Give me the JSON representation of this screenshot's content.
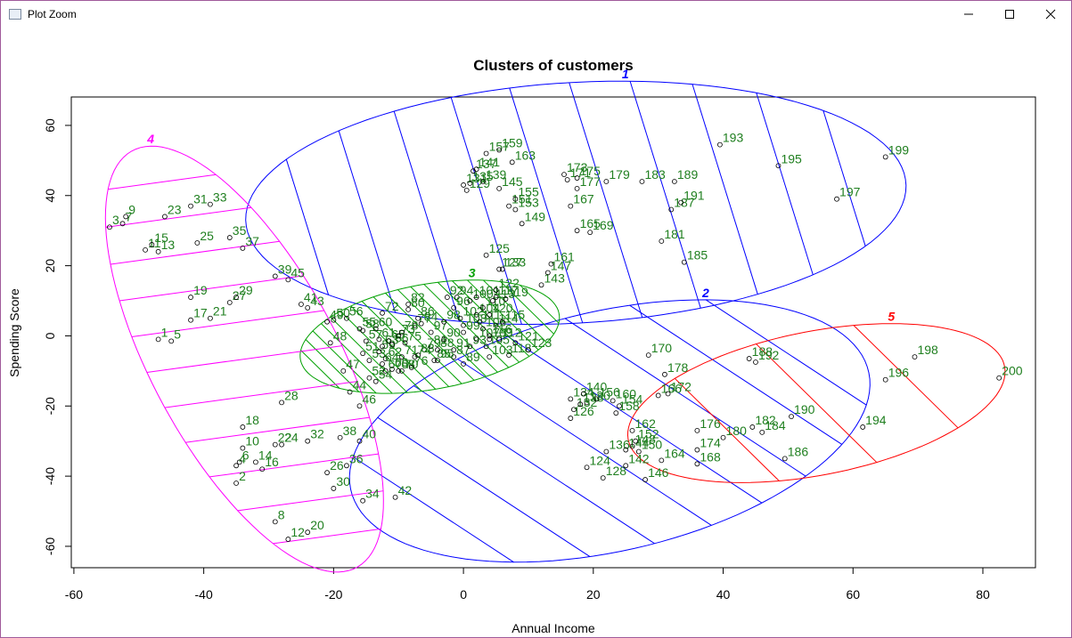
{
  "window": {
    "title": "Plot Zoom"
  },
  "chart_data": {
    "type": "clusplot",
    "title": "Clusters of customers",
    "xlabel": "Annual Income",
    "ylabel": "Spending Score",
    "xlim": [
      -60.4,
      88.1
    ],
    "ylim": [
      -66.1,
      68.1
    ],
    "xticks": [
      -60,
      -40,
      -20,
      0,
      20,
      40,
      60,
      80
    ],
    "yticks": [
      -60,
      -40,
      -20,
      0,
      20,
      40,
      60
    ],
    "label_color": "#1f7f1f",
    "series": [
      {
        "name": "1",
        "color": "#0000ff",
        "labels": [
          "125",
          "127",
          "129",
          "131",
          "133",
          "135",
          "137",
          "139",
          "141",
          "143",
          "145",
          "147",
          "149",
          "151",
          "153",
          "155",
          "157",
          "159",
          "161",
          "163",
          "165",
          "167",
          "169",
          "171",
          "173",
          "175",
          "177",
          "179",
          "181",
          "183",
          "185",
          "187",
          "189",
          "191",
          "193",
          "195",
          "197",
          "199"
        ],
        "x": [
          3.5,
          5.5,
          0.5,
          0,
          6,
          1,
          1.5,
          3,
          2,
          12,
          5.5,
          13,
          9,
          7,
          8,
          8,
          3.5,
          5.5,
          13.5,
          7.5,
          17.5,
          16.5,
          19.5,
          16,
          15.5,
          17.5,
          17.5,
          22,
          30.5,
          27.5,
          34,
          32,
          32.5,
          33.5,
          39.5,
          48.5,
          57.5,
          65
        ],
        "values": [
          23,
          19,
          41.5,
          43,
          19,
          43.5,
          47,
          44,
          47.5,
          14.5,
          42,
          18,
          32,
          37,
          36,
          39,
          52,
          53,
          20.5,
          49.5,
          30,
          37,
          29.5,
          44.5,
          46,
          45,
          42,
          44,
          27,
          44,
          21,
          36,
          44,
          38,
          54.5,
          48.5,
          39,
          51
        ]
      },
      {
        "name": "2",
        "color": "#0000ff",
        "labels": [
          "34",
          "42",
          "124",
          "126",
          "128",
          "130",
          "132",
          "134",
          "136",
          "138",
          "140",
          "142",
          "144",
          "146",
          "148",
          "150",
          "152",
          "154",
          "156",
          "158",
          "160",
          "162",
          "164",
          "166",
          "168",
          "170",
          "172",
          "174",
          "176",
          "178"
        ],
        "x": [
          -15.5,
          -10.5,
          19,
          16.5,
          21.5,
          19,
          17,
          16.5,
          22,
          18,
          18.5,
          25,
          25,
          28,
          26,
          27,
          26.5,
          24,
          20.5,
          23.5,
          23,
          26,
          30.5,
          30,
          36,
          28.5,
          31.5,
          36,
          36,
          31
        ],
        "values": [
          -47,
          -46,
          -37.5,
          -23.5,
          -40.5,
          -19,
          -21,
          -18,
          -33,
          -19.5,
          -16.5,
          -37,
          -32.5,
          -41,
          -31.5,
          -33,
          -30,
          -20,
          -18,
          -22,
          -18.5,
          -27,
          -35.5,
          -17,
          -36.5,
          -5.5,
          -16.5,
          -32.5,
          -27,
          -11
        ]
      },
      {
        "name": "3",
        "color": "#00a000",
        "labels": [
          "47",
          "48",
          "49",
          "50",
          "51",
          "52",
          "53",
          "54",
          "55",
          "56",
          "57",
          "58",
          "59",
          "60",
          "61",
          "62",
          "63",
          "64",
          "65",
          "66",
          "67",
          "68",
          "69",
          "70",
          "71",
          "72",
          "73",
          "74",
          "75",
          "76",
          "77",
          "78",
          "79",
          "80",
          "81",
          "82",
          "83",
          "84",
          "85",
          "86",
          "87",
          "88",
          "89",
          "90",
          "91",
          "92",
          "93",
          "94",
          "95",
          "96",
          "97",
          "98",
          "99",
          "100",
          "101",
          "102",
          "103",
          "104",
          "105",
          "106",
          "107",
          "108",
          "109",
          "110",
          "111",
          "112",
          "113",
          "114",
          "115",
          "116",
          "117",
          "118",
          "119",
          "120",
          "121",
          "122",
          "123"
        ],
        "x": [
          -18.5,
          -20.5,
          -21,
          -20,
          -15.5,
          -14.5,
          -14.5,
          -13.5,
          -16,
          -18,
          -15,
          -15.5,
          -13,
          -13.5,
          -13,
          -12,
          -12.5,
          -12.5,
          -11.5,
          -11,
          -12,
          -10,
          -11,
          -9.5,
          -9.5,
          -12.5,
          -10,
          -7.5,
          -9,
          -8,
          -7.5,
          -9.5,
          -6,
          -8.5,
          -5,
          -8.5,
          -7,
          -6.5,
          -4.5,
          -7,
          -1.5,
          -4,
          0,
          -3,
          -1.5,
          -2.5,
          1,
          -1,
          -4,
          -1.5,
          -5,
          -3,
          0,
          1,
          2,
          -0.5,
          4,
          2,
          3.5,
          3,
          2,
          0,
          4,
          3,
          2.5,
          5.5,
          4.5,
          5,
          6,
          4,
          5,
          7,
          6.5,
          4,
          8,
          5,
          10
        ],
        "values": [
          -10,
          -2,
          4,
          4.5,
          -5,
          -12,
          -7,
          -13,
          2,
          5,
          -1.5,
          1.5,
          -4.5,
          2,
          -1,
          -6.5,
          -3,
          -8,
          -1.5,
          -2.5,
          -10,
          -10,
          -9.5,
          -10,
          -6,
          6.5,
          0,
          -6,
          -2,
          -9,
          3,
          1,
          -4,
          7.5,
          -3,
          9,
          -5.5,
          3.5,
          -7,
          5,
          -6,
          -4,
          -8,
          -1,
          -4,
          11,
          -3,
          11,
          -7,
          8,
          1,
          4,
          1,
          10,
          11,
          5,
          -6,
          6,
          -3,
          2,
          -1,
          3,
          -1,
          8,
          4,
          -1,
          10,
          3,
          4,
          0,
          11,
          -5.5,
          10.5,
          6,
          -2,
          13,
          -4
        ]
      },
      {
        "name": "4",
        "color": "#ff00ff",
        "labels": [
          "1",
          "2",
          "3",
          "4",
          "5",
          "6",
          "7",
          "8",
          "9",
          "10",
          "11",
          "12",
          "13",
          "14",
          "15",
          "16",
          "17",
          "18",
          "19",
          "20",
          "21",
          "22",
          "23",
          "24",
          "25",
          "26",
          "27",
          "28",
          "29",
          "30",
          "31",
          "32",
          "33",
          "35",
          "36",
          "37",
          "38",
          "39",
          "40",
          "41",
          "43",
          "44",
          "45",
          "46"
        ],
        "x": [
          -47,
          -35,
          -54.5,
          -35,
          -45,
          -34.5,
          -52.5,
          -29,
          -52,
          -34,
          -49,
          -27,
          -47,
          -32,
          -48,
          -31,
          -42,
          -34,
          -42,
          -24,
          -39,
          -29,
          -46,
          -28,
          -41,
          -21,
          -36,
          -28,
          -35,
          -20,
          -42,
          -24,
          -39,
          -36,
          -18,
          -34,
          -19,
          -29,
          -16,
          -25,
          -24,
          -17.5,
          -27,
          -16
        ],
        "values": [
          -1,
          -42,
          31,
          -37,
          -1.5,
          -36,
          32,
          -53,
          34,
          -32,
          24.5,
          -58,
          24,
          -36,
          26,
          -38,
          4.5,
          -26,
          11,
          -56,
          5,
          -31,
          34,
          -31,
          26.5,
          -39,
          9.5,
          -19,
          11,
          -43.5,
          37,
          -30,
          37.5,
          28,
          -37,
          25,
          -29,
          17,
          -30,
          9,
          8,
          -16,
          16,
          -20
        ]
      },
      {
        "name": "5",
        "color": "#ff0000",
        "labels": [
          "180",
          "182",
          "184",
          "186",
          "188",
          "190",
          "192",
          "194",
          "196",
          "198",
          "200"
        ],
        "x": [
          40,
          44.5,
          46,
          49.5,
          44,
          50.5,
          45,
          61.5,
          65,
          69.5,
          82.5
        ],
        "values": [
          -29,
          -26,
          -27.5,
          -35,
          -6.5,
          -23,
          -7.5,
          -26,
          -12.5,
          -6,
          -12
        ]
      }
    ]
  }
}
